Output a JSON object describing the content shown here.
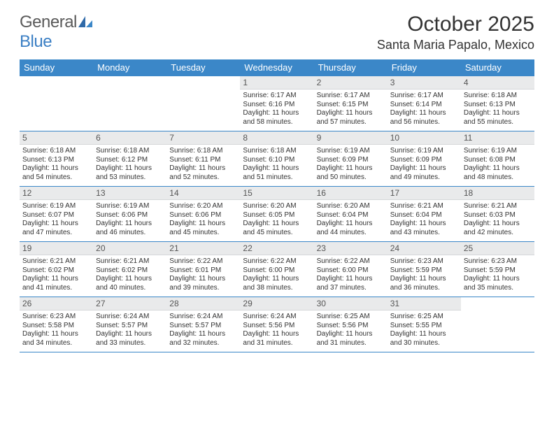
{
  "brand": {
    "part1": "General",
    "part2": "Blue"
  },
  "title": "October 2025",
  "location": "Santa Maria Papalo, Mexico",
  "colors": {
    "header_bg": "#3b87c8",
    "header_text": "#ffffff",
    "daynum_bg": "#e9eaeb",
    "row_border": "#3b87c8",
    "brand_gray": "#5a5a5a",
    "brand_blue": "#3b7fc4"
  },
  "day_labels": [
    "Sunday",
    "Monday",
    "Tuesday",
    "Wednesday",
    "Thursday",
    "Friday",
    "Saturday"
  ],
  "weeks": [
    [
      {
        "n": "",
        "lines": [],
        "empty": true
      },
      {
        "n": "",
        "lines": [],
        "empty": true
      },
      {
        "n": "",
        "lines": [],
        "empty": true
      },
      {
        "n": "1",
        "lines": [
          "Sunrise: 6:17 AM",
          "Sunset: 6:16 PM",
          "Daylight: 11 hours and 58 minutes."
        ]
      },
      {
        "n": "2",
        "lines": [
          "Sunrise: 6:17 AM",
          "Sunset: 6:15 PM",
          "Daylight: 11 hours and 57 minutes."
        ]
      },
      {
        "n": "3",
        "lines": [
          "Sunrise: 6:17 AM",
          "Sunset: 6:14 PM",
          "Daylight: 11 hours and 56 minutes."
        ]
      },
      {
        "n": "4",
        "lines": [
          "Sunrise: 6:18 AM",
          "Sunset: 6:13 PM",
          "Daylight: 11 hours and 55 minutes."
        ]
      }
    ],
    [
      {
        "n": "5",
        "lines": [
          "Sunrise: 6:18 AM",
          "Sunset: 6:13 PM",
          "Daylight: 11 hours and 54 minutes."
        ]
      },
      {
        "n": "6",
        "lines": [
          "Sunrise: 6:18 AM",
          "Sunset: 6:12 PM",
          "Daylight: 11 hours and 53 minutes."
        ]
      },
      {
        "n": "7",
        "lines": [
          "Sunrise: 6:18 AM",
          "Sunset: 6:11 PM",
          "Daylight: 11 hours and 52 minutes."
        ]
      },
      {
        "n": "8",
        "lines": [
          "Sunrise: 6:18 AM",
          "Sunset: 6:10 PM",
          "Daylight: 11 hours and 51 minutes."
        ]
      },
      {
        "n": "9",
        "lines": [
          "Sunrise: 6:19 AM",
          "Sunset: 6:09 PM",
          "Daylight: 11 hours and 50 minutes."
        ]
      },
      {
        "n": "10",
        "lines": [
          "Sunrise: 6:19 AM",
          "Sunset: 6:09 PM",
          "Daylight: 11 hours and 49 minutes."
        ]
      },
      {
        "n": "11",
        "lines": [
          "Sunrise: 6:19 AM",
          "Sunset: 6:08 PM",
          "Daylight: 11 hours and 48 minutes."
        ]
      }
    ],
    [
      {
        "n": "12",
        "lines": [
          "Sunrise: 6:19 AM",
          "Sunset: 6:07 PM",
          "Daylight: 11 hours and 47 minutes."
        ]
      },
      {
        "n": "13",
        "lines": [
          "Sunrise: 6:19 AM",
          "Sunset: 6:06 PM",
          "Daylight: 11 hours and 46 minutes."
        ]
      },
      {
        "n": "14",
        "lines": [
          "Sunrise: 6:20 AM",
          "Sunset: 6:06 PM",
          "Daylight: 11 hours and 45 minutes."
        ]
      },
      {
        "n": "15",
        "lines": [
          "Sunrise: 6:20 AM",
          "Sunset: 6:05 PM",
          "Daylight: 11 hours and 45 minutes."
        ]
      },
      {
        "n": "16",
        "lines": [
          "Sunrise: 6:20 AM",
          "Sunset: 6:04 PM",
          "Daylight: 11 hours and 44 minutes."
        ]
      },
      {
        "n": "17",
        "lines": [
          "Sunrise: 6:21 AM",
          "Sunset: 6:04 PM",
          "Daylight: 11 hours and 43 minutes."
        ]
      },
      {
        "n": "18",
        "lines": [
          "Sunrise: 6:21 AM",
          "Sunset: 6:03 PM",
          "Daylight: 11 hours and 42 minutes."
        ]
      }
    ],
    [
      {
        "n": "19",
        "lines": [
          "Sunrise: 6:21 AM",
          "Sunset: 6:02 PM",
          "Daylight: 11 hours and 41 minutes."
        ]
      },
      {
        "n": "20",
        "lines": [
          "Sunrise: 6:21 AM",
          "Sunset: 6:02 PM",
          "Daylight: 11 hours and 40 minutes."
        ]
      },
      {
        "n": "21",
        "lines": [
          "Sunrise: 6:22 AM",
          "Sunset: 6:01 PM",
          "Daylight: 11 hours and 39 minutes."
        ]
      },
      {
        "n": "22",
        "lines": [
          "Sunrise: 6:22 AM",
          "Sunset: 6:00 PM",
          "Daylight: 11 hours and 38 minutes."
        ]
      },
      {
        "n": "23",
        "lines": [
          "Sunrise: 6:22 AM",
          "Sunset: 6:00 PM",
          "Daylight: 11 hours and 37 minutes."
        ]
      },
      {
        "n": "24",
        "lines": [
          "Sunrise: 6:23 AM",
          "Sunset: 5:59 PM",
          "Daylight: 11 hours and 36 minutes."
        ]
      },
      {
        "n": "25",
        "lines": [
          "Sunrise: 6:23 AM",
          "Sunset: 5:59 PM",
          "Daylight: 11 hours and 35 minutes."
        ]
      }
    ],
    [
      {
        "n": "26",
        "lines": [
          "Sunrise: 6:23 AM",
          "Sunset: 5:58 PM",
          "Daylight: 11 hours and 34 minutes."
        ]
      },
      {
        "n": "27",
        "lines": [
          "Sunrise: 6:24 AM",
          "Sunset: 5:57 PM",
          "Daylight: 11 hours and 33 minutes."
        ]
      },
      {
        "n": "28",
        "lines": [
          "Sunrise: 6:24 AM",
          "Sunset: 5:57 PM",
          "Daylight: 11 hours and 32 minutes."
        ]
      },
      {
        "n": "29",
        "lines": [
          "Sunrise: 6:24 AM",
          "Sunset: 5:56 PM",
          "Daylight: 11 hours and 31 minutes."
        ]
      },
      {
        "n": "30",
        "lines": [
          "Sunrise: 6:25 AM",
          "Sunset: 5:56 PM",
          "Daylight: 11 hours and 31 minutes."
        ]
      },
      {
        "n": "31",
        "lines": [
          "Sunrise: 6:25 AM",
          "Sunset: 5:55 PM",
          "Daylight: 11 hours and 30 minutes."
        ]
      },
      {
        "n": "",
        "lines": [],
        "empty": true
      }
    ]
  ]
}
